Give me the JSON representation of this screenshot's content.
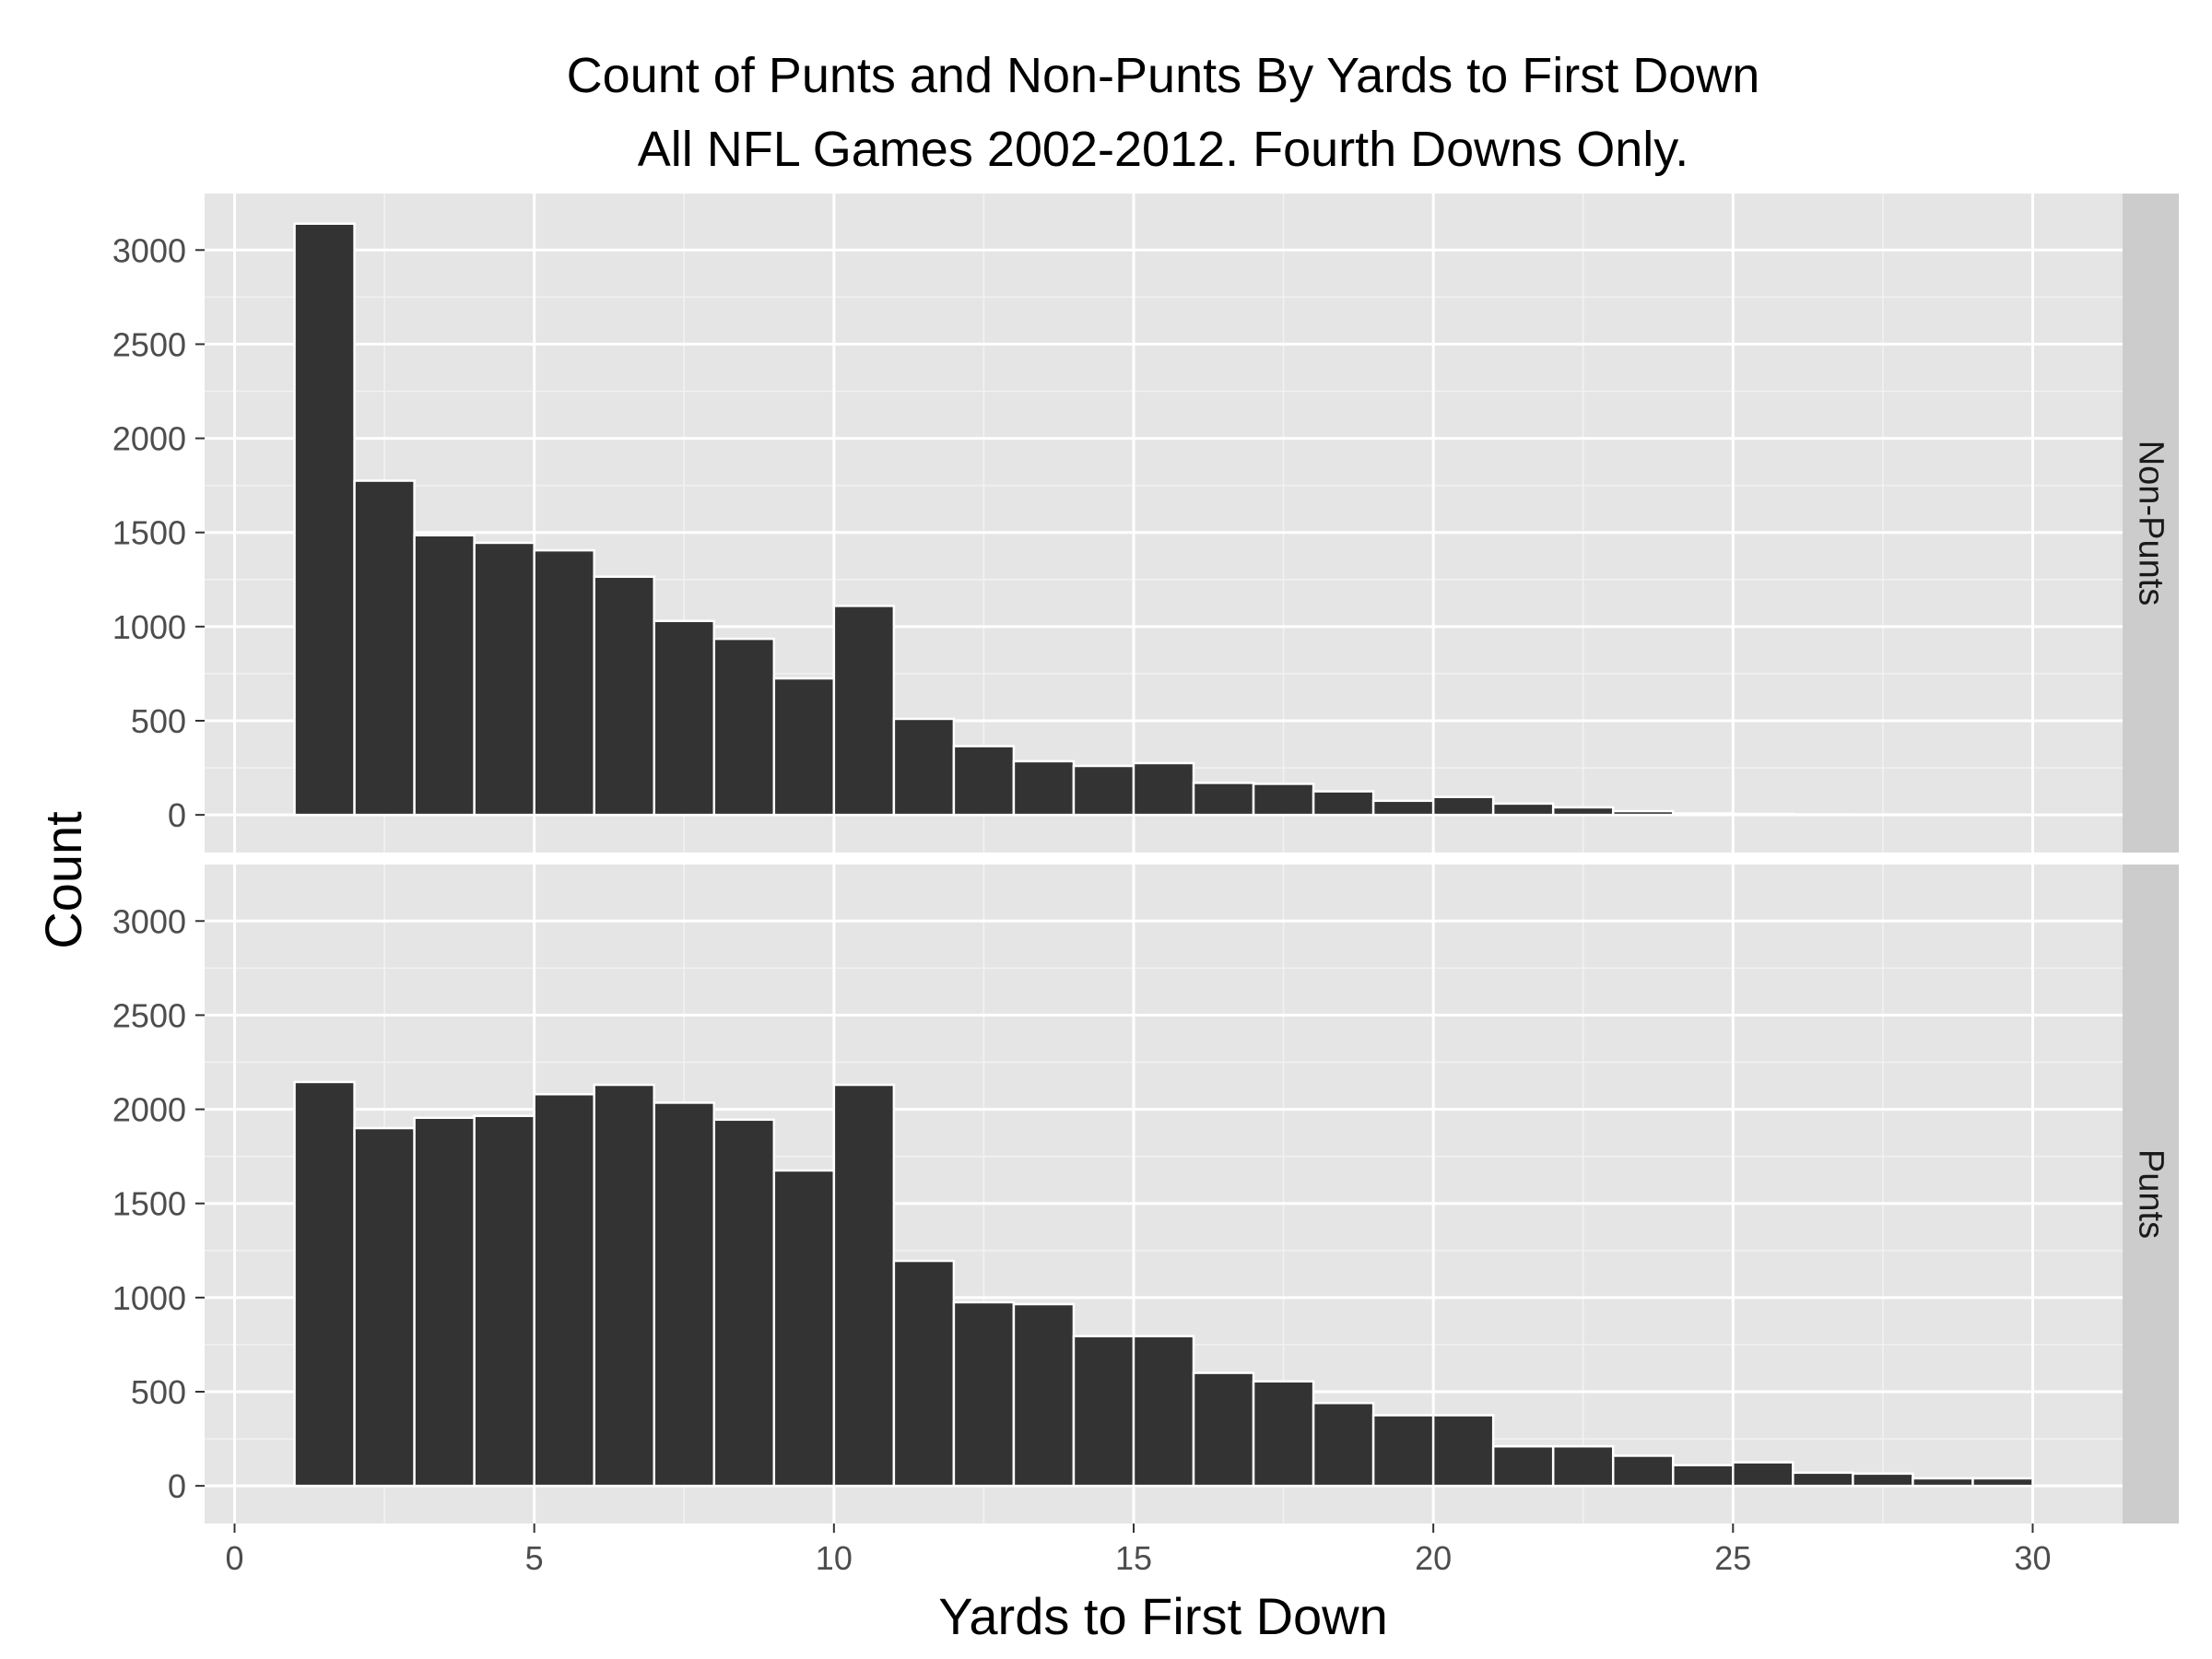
{
  "chart_data": {
    "type": "bar",
    "title": "Count of Punts and Non-Punts By Yards to First Down",
    "subtitle": "All NFL Games 2002-2012. Fourth Downs Only.",
    "xlabel": "Yards to First Down",
    "ylabel": "Count",
    "xlim": [
      -0.5,
      31.5
    ],
    "ylim": [
      -200,
      3300
    ],
    "x_ticks": [
      0,
      5,
      10,
      15,
      20,
      25,
      30
    ],
    "y_ticks": [
      0,
      500,
      1000,
      1500,
      2000,
      2500,
      3000
    ],
    "bin_width": 1,
    "bin_starts": [
      1,
      2,
      3,
      4,
      5,
      6,
      7,
      8,
      9,
      10,
      11,
      12,
      13,
      14,
      15,
      16,
      17,
      18,
      19,
      20,
      21,
      22,
      23,
      24,
      25,
      26,
      27,
      28,
      29
    ],
    "grid": true,
    "colors": {
      "bar_fill": "#333333",
      "bar_stroke": "#ffffff",
      "panel_bg": "#e5e5e5",
      "grid": "#ffffff",
      "strip_bg": "#cccccc"
    },
    "panels": [
      {
        "name": "Non-Punts",
        "values": [
          3140,
          1775,
          1485,
          1445,
          1405,
          1265,
          1030,
          935,
          725,
          1110,
          510,
          365,
          285,
          260,
          275,
          170,
          165,
          125,
          75,
          95,
          60,
          40,
          20,
          8,
          5,
          3,
          2,
          1,
          1
        ]
      },
      {
        "name": "Punts",
        "values": [
          2145,
          1900,
          1955,
          1965,
          2080,
          2130,
          2035,
          1945,
          1675,
          2130,
          1195,
          975,
          965,
          795,
          795,
          600,
          555,
          440,
          375,
          375,
          210,
          210,
          160,
          110,
          125,
          70,
          65,
          40,
          40
        ]
      }
    ]
  }
}
